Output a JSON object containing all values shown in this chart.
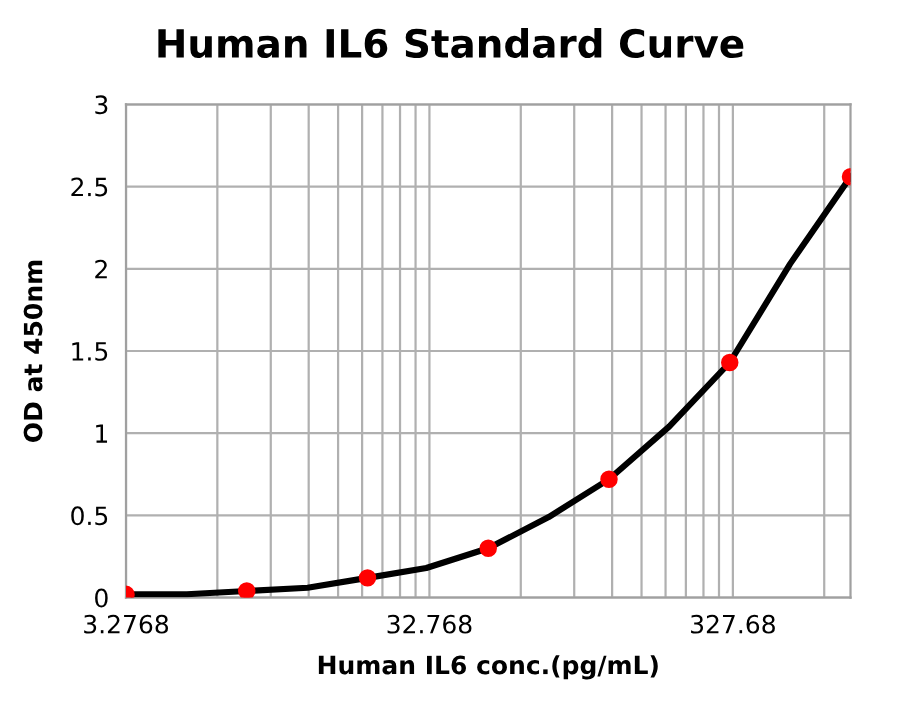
{
  "chart_data": {
    "type": "scatter",
    "title": "Human IL6 Standard Curve",
    "xlabel": "Human IL6 conc.(pg/mL)",
    "ylabel": "OD at 450nm",
    "x": [
      3.2768,
      8.192,
      20.48,
      51.2,
      128,
      320,
      800
    ],
    "series": [
      {
        "type": "line",
        "color": "#000000",
        "marker": "none",
        "x": [
          3.2768,
          5.2,
          8.192,
          13,
          20.48,
          32,
          51.2,
          81,
          128,
          202,
          320,
          506,
          800
        ],
        "values": [
          0.02,
          0.02,
          0.04,
          0.06,
          0.12,
          0.18,
          0.3,
          0.49,
          0.72,
          1.04,
          1.43,
          2.03,
          2.56
        ]
      },
      {
        "color": "#ff0000",
        "marker": "circle",
        "values": [
          0.02,
          0.04,
          0.12,
          0.3,
          0.72,
          1.43,
          2.56
        ]
      }
    ],
    "log": "x",
    "xlim": [
      3.2768,
      800
    ],
    "xticks": [
      3.2768,
      {
        "value": 6.5536,
        "label": null
      },
      {
        "value": 9.8304,
        "label": null
      },
      {
        "value": 13.1072,
        "label": null
      },
      {
        "value": 16.384,
        "label": null
      },
      {
        "value": 19.6608,
        "label": null
      },
      {
        "value": 22.9376,
        "label": null
      },
      {
        "value": 26.2144,
        "label": null
      },
      {
        "value": 29.4912,
        "label": null
      },
      32.768,
      {
        "value": 65.536,
        "label": null
      },
      {
        "value": 98.304,
        "label": null
      },
      {
        "value": 131.072,
        "label": null
      },
      {
        "value": 163.84,
        "label": null
      },
      {
        "value": 196.608,
        "label": null
      },
      {
        "value": 229.376,
        "label": null
      },
      {
        "value": 262.144,
        "label": null
      },
      {
        "value": 294.912,
        "label": null
      },
      327.68,
      {
        "value": 655.36,
        "label": null
      }
    ],
    "ylim": [
      0,
      3
    ],
    "yticks": [
      0,
      0.5,
      1,
      1.5,
      2,
      2.5,
      3
    ],
    "grid": true,
    "legend": false
  }
}
